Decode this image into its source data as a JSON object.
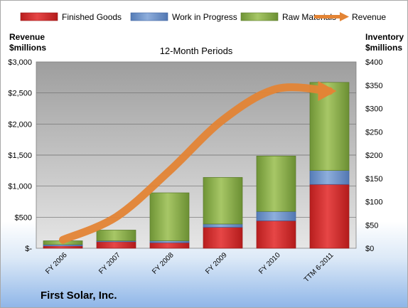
{
  "colors": {
    "finished": "#d42a2a",
    "wip": "#6f93c8",
    "raw": "#8fb14a",
    "revenue": "#e38435",
    "grid": "#6b6b6b"
  },
  "company": "First Solar, Inc.",
  "chart_data": {
    "type": "bar",
    "stacked": true,
    "title": "12-Month Periods",
    "categories": [
      "FY 2006",
      "FY 2007",
      "FY 2008",
      "FY 2009",
      "FY 2010",
      "TTM 6-2011"
    ],
    "left_axis": {
      "title_line1": "Revenue",
      "title_line2": "$millions",
      "ylim": [
        0,
        3000
      ],
      "ticks": [
        "$-",
        "$500",
        "$1,000",
        "$1,500",
        "$2,000",
        "$2,500",
        "$3,000"
      ]
    },
    "right_axis": {
      "title_line1": "Inventory",
      "title_line2": "$millions",
      "ylim": [
        0,
        400
      ],
      "ticks": [
        "$0",
        "$50",
        "$100",
        "$150",
        "$200",
        "$250",
        "$300",
        "$350",
        "$400"
      ]
    },
    "series": [
      {
        "name": "Finished Goods",
        "axis": "right",
        "kind": "bar",
        "values": [
          5,
          14,
          12,
          45,
          59,
          137
        ]
      },
      {
        "name": "Work in Progress",
        "axis": "right",
        "kind": "bar",
        "values": [
          3,
          2,
          4,
          7,
          20,
          30
        ]
      },
      {
        "name": "Raw Materials",
        "axis": "right",
        "kind": "bar",
        "values": [
          8,
          23,
          103,
          100,
          119,
          189
        ]
      },
      {
        "name": "Revenue",
        "axis": "left",
        "kind": "line",
        "values": [
          135,
          504,
          1246,
          2066,
          2564,
          2530
        ]
      }
    ],
    "legend_position": "top",
    "grid": true
  }
}
